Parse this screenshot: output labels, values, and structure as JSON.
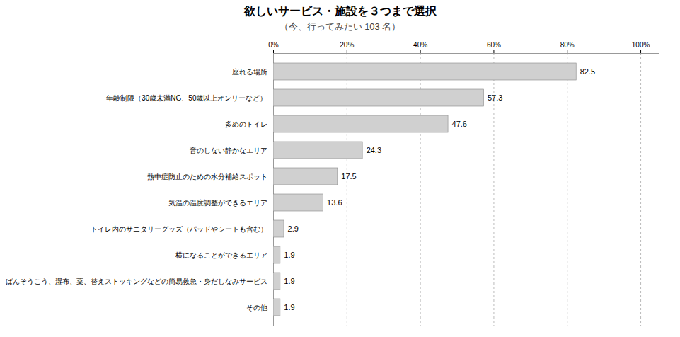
{
  "chart_data": {
    "type": "bar",
    "orientation": "horizontal",
    "title": "欲しいサービス・施設を３つまで選択",
    "subtitle": "（今、行ってみたい 103 名）",
    "categories": [
      "座れる場所",
      "年齢制限（30歳未満NG、50歳以上オンリーなど）",
      "多めのトイレ",
      "音のしない静かなエリア",
      "熱中症防止のための水分補給スポット",
      "気温の温度調整ができるエリア",
      "トイレ内のサニタリーグッズ（パッドやシートも含む）",
      "横になることができるエリア",
      "ばんそうこう、湿布、薬、替えストッキングなどの簡易救急・身だしなみサービス",
      "その他"
    ],
    "values": [
      82.5,
      57.3,
      47.6,
      24.3,
      17.5,
      13.6,
      2.9,
      1.9,
      1.9,
      1.9
    ],
    "color": "#d0d0d0",
    "xlim": [
      0,
      105
    ],
    "xticks": [
      {
        "value": 0,
        "label": "0%"
      },
      {
        "value": 20,
        "label": "20%"
      },
      {
        "value": 40,
        "label": "40%"
      },
      {
        "value": 60,
        "label": "60%"
      },
      {
        "value": 80,
        "label": "80%"
      },
      {
        "value": 100,
        "label": "100%"
      }
    ],
    "grid": true,
    "data_labels": true
  }
}
